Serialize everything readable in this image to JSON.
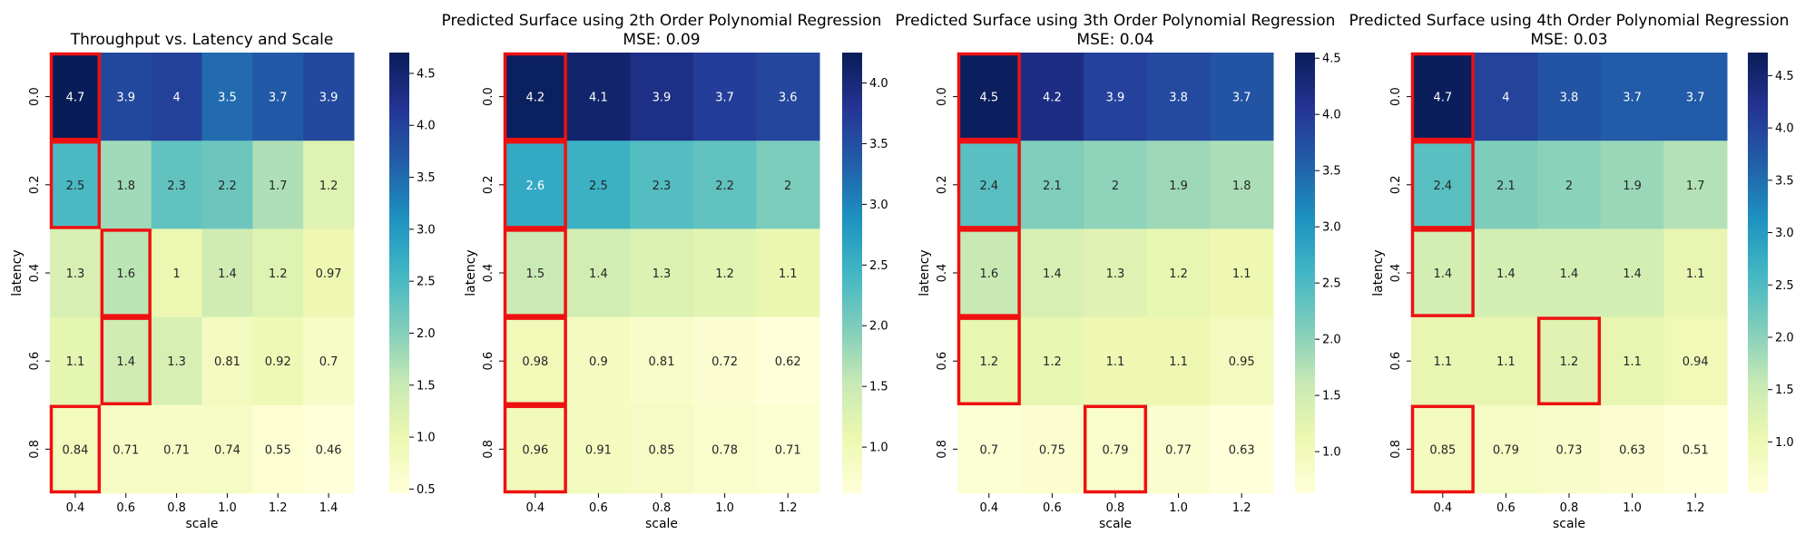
{
  "chart_data": [
    {
      "type": "heatmap",
      "title": "Throughput vs. Latency and Scale",
      "subtitle": "",
      "xlabel": "scale",
      "ylabel": "latency",
      "x": [
        "0.4",
        "0.6",
        "0.8",
        "1.0",
        "1.2",
        "1.4"
      ],
      "y": [
        "0.0",
        "0.2",
        "0.4",
        "0.6",
        "0.8"
      ],
      "values": [
        [
          4.7,
          3.9,
          4,
          3.5,
          3.7,
          3.9
        ],
        [
          2.5,
          1.8,
          2.3,
          2.2,
          1.7,
          1.2
        ],
        [
          1.3,
          1.6,
          1,
          1.4,
          1.2,
          0.97
        ],
        [
          1.1,
          1.4,
          1.3,
          0.81,
          0.92,
          0.7
        ],
        [
          0.84,
          0.71,
          0.71,
          0.74,
          0.55,
          0.46
        ]
      ],
      "highlight": [
        [
          0,
          0
        ],
        [
          1,
          0
        ],
        [
          2,
          1
        ],
        [
          3,
          1
        ],
        [
          4,
          0
        ]
      ],
      "colorbar": {
        "min": 0.46,
        "max": 4.7,
        "ticks": [
          "0.5",
          "1.0",
          "1.5",
          "2.0",
          "2.5",
          "3.0",
          "3.5",
          "4.0",
          "4.5"
        ]
      }
    },
    {
      "type": "heatmap",
      "title": "Predicted Surface using 2th Order Polynomial Regression",
      "subtitle": "MSE: 0.09",
      "xlabel": "scale",
      "ylabel": "latency",
      "x": [
        "0.4",
        "0.6",
        "0.8",
        "1.0",
        "1.2"
      ],
      "y": [
        "0.0",
        "0.2",
        "0.4",
        "0.6",
        "0.8"
      ],
      "values": [
        [
          4.2,
          4.1,
          3.9,
          3.7,
          3.6
        ],
        [
          2.6,
          2.5,
          2.3,
          2.2,
          2
        ],
        [
          1.5,
          1.4,
          1.3,
          1.2,
          1.1
        ],
        [
          0.98,
          0.9,
          0.81,
          0.72,
          0.62
        ],
        [
          0.96,
          0.91,
          0.85,
          0.78,
          0.71
        ]
      ],
      "highlight": [
        [
          0,
          0
        ],
        [
          1,
          0
        ],
        [
          2,
          0
        ],
        [
          3,
          0
        ],
        [
          4,
          0
        ]
      ],
      "colorbar": {
        "min": 0.62,
        "max": 4.25,
        "ticks": [
          "1.0",
          "1.5",
          "2.0",
          "2.5",
          "3.0",
          "3.5",
          "4.0"
        ]
      }
    },
    {
      "type": "heatmap",
      "title": "Predicted Surface using 3th Order Polynomial Regression",
      "subtitle": "MSE: 0.04",
      "xlabel": "scale",
      "ylabel": "latency",
      "x": [
        "0.4",
        "0.6",
        "0.8",
        "1.0",
        "1.2"
      ],
      "y": [
        "0.0",
        "0.2",
        "0.4",
        "0.6",
        "0.8"
      ],
      "values": [
        [
          4.5,
          4.2,
          3.9,
          3.8,
          3.7
        ],
        [
          2.4,
          2.1,
          2,
          1.9,
          1.8
        ],
        [
          1.6,
          1.4,
          1.3,
          1.2,
          1.1
        ],
        [
          1.2,
          1.2,
          1.1,
          1.1,
          0.95
        ],
        [
          0.7,
          0.75,
          0.79,
          0.77,
          0.63
        ]
      ],
      "highlight": [
        [
          0,
          0
        ],
        [
          1,
          0
        ],
        [
          2,
          0
        ],
        [
          3,
          0
        ],
        [
          4,
          2
        ]
      ],
      "colorbar": {
        "min": 0.63,
        "max": 4.55,
        "ticks": [
          "1.0",
          "1.5",
          "2.0",
          "2.5",
          "3.0",
          "3.5",
          "4.0",
          "4.5"
        ]
      }
    },
    {
      "type": "heatmap",
      "title": "Predicted Surface using 4th Order Polynomial Regression",
      "subtitle": "MSE: 0.03",
      "xlabel": "scale",
      "ylabel": "latency",
      "x": [
        "0.4",
        "0.6",
        "0.8",
        "1.0",
        "1.2"
      ],
      "y": [
        "0.0",
        "0.2",
        "0.4",
        "0.6",
        "0.8"
      ],
      "values": [
        [
          4.7,
          4,
          3.8,
          3.7,
          3.7
        ],
        [
          2.4,
          2.1,
          2,
          1.9,
          1.7
        ],
        [
          1.4,
          1.4,
          1.4,
          1.4,
          1.1
        ],
        [
          1.1,
          1.1,
          1.2,
          1.1,
          0.94
        ],
        [
          0.85,
          0.79,
          0.73,
          0.63,
          0.51
        ]
      ],
      "highlight": [
        [
          0,
          0
        ],
        [
          1,
          0
        ],
        [
          2,
          0
        ],
        [
          3,
          2
        ],
        [
          4,
          0
        ]
      ],
      "colorbar": {
        "min": 0.51,
        "max": 4.72,
        "ticks": [
          "1.0",
          "1.5",
          "2.0",
          "2.5",
          "3.0",
          "3.5",
          "4.0",
          "4.5"
        ]
      }
    }
  ]
}
